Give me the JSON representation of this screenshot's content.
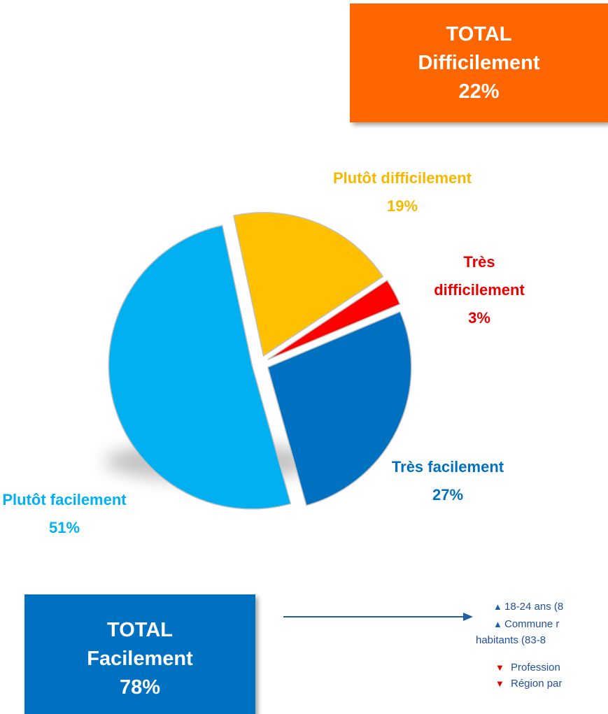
{
  "chart_data": {
    "type": "pie",
    "categories": [
      "Plutôt difficilement",
      "Très difficilement",
      "Très facilement",
      "Plutôt facilement"
    ],
    "values": [
      19,
      3,
      27,
      51
    ],
    "value_labels": [
      "19%",
      "3%",
      "27%",
      "51%"
    ],
    "colors": [
      "#ffc000",
      "#ff0000",
      "#0070c0",
      "#00b0f0"
    ],
    "label_colors": [
      "#f5b800",
      "#e60000",
      "#0070c0",
      "#00b0f0"
    ]
  },
  "totals": [
    {
      "title": "TOTAL",
      "name": "Difficilement",
      "value": "22%",
      "color": "#ff6600"
    },
    {
      "title": "TOTAL",
      "name": "Facilement",
      "value": "78%",
      "color": "#0070c0"
    }
  ],
  "notes": [
    {
      "marker": "up",
      "text": "18-24 ans (8"
    },
    {
      "marker": "up",
      "text": "Commune r"
    },
    {
      "marker": "none",
      "text": "habitants (83-8"
    },
    {
      "marker": "down",
      "text": "Profession"
    },
    {
      "marker": "down",
      "text": "Région par"
    }
  ]
}
